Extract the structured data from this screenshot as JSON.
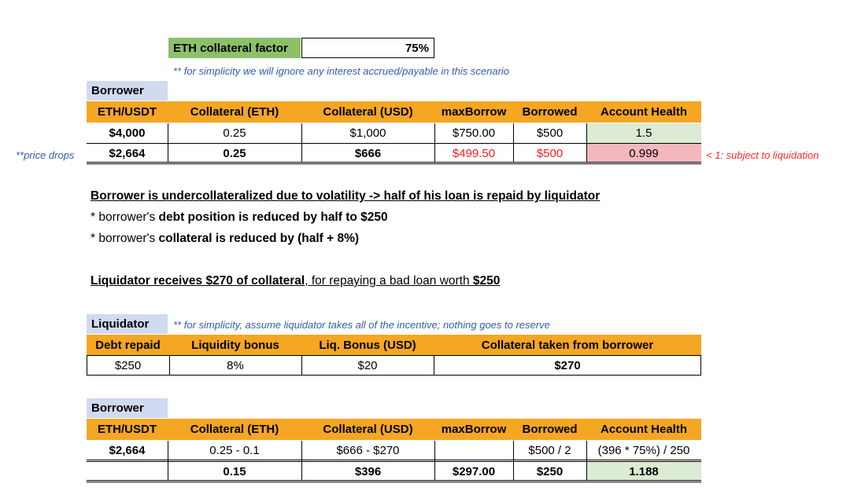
{
  "collateral_factor": {
    "label": "ETH collateral factor",
    "value": "75%"
  },
  "top_note": "** for simplicity we will ignore any interest accrued/payable in this scenario",
  "table1": {
    "label": "Borrower",
    "headers": [
      "ETH/USDT",
      "Collateral (ETH)",
      "Collateral (USD)",
      "maxBorrow",
      "Borrowed",
      "Account Health"
    ],
    "rows": [
      [
        "$4,000",
        "0.25",
        "$1,000",
        "$750.00",
        "$500",
        "1.5"
      ],
      [
        "$2,664",
        "0.25",
        "$666",
        "$499.50",
        "$500",
        "0.999"
      ]
    ],
    "price_drops_note": "**price drops",
    "liquidation_note": "< 1: subject to liquidation"
  },
  "explanation": {
    "heading": "Borrower is undercollateralized due to volatility -> half of his loan is repaid by liquidator",
    "line1_prefix": "* borrower's ",
    "line1_bold": "debt position is reduced by half to $250",
    "line2_prefix": "* borrower's ",
    "line2_bold": "collateral is reduced by (half + 8%)",
    "summary_bold1": "Liquidator receives $270 of collateral",
    "summary_mid": ", for repaying a bad loan worth ",
    "summary_bold2": "$250"
  },
  "table2": {
    "label": "Liquidator",
    "note": "** for simplicity, assume liquidator takes all of the incentive; nothing goes to reserve",
    "headers": [
      "Debt repaid",
      "Liquidity bonus",
      "Liq. Bonus (USD)",
      "Collateral taken from borrower"
    ],
    "row": [
      "$250",
      "8%",
      "$20",
      "$270"
    ]
  },
  "table3": {
    "label": "Borrower",
    "headers": [
      "ETH/USDT",
      "Collateral (ETH)",
      "Collateral (USD)",
      "maxBorrow",
      "Borrowed",
      "Account Health"
    ],
    "row1": [
      "$2,664",
      "0.25 - 0.1",
      "$666 - $270",
      "",
      "$500 / 2",
      "(396 * 75%) / 250"
    ],
    "row2": [
      "",
      "0.15",
      "$396",
      "$297.00",
      "$250",
      "1.188"
    ]
  },
  "colors": {
    "header": "#f5a623",
    "label": "#d0daf0",
    "green": "#dcebd3",
    "pink": "#f4b7bd",
    "note_blue": "#2f5db0",
    "red": "#ff1a1a"
  }
}
